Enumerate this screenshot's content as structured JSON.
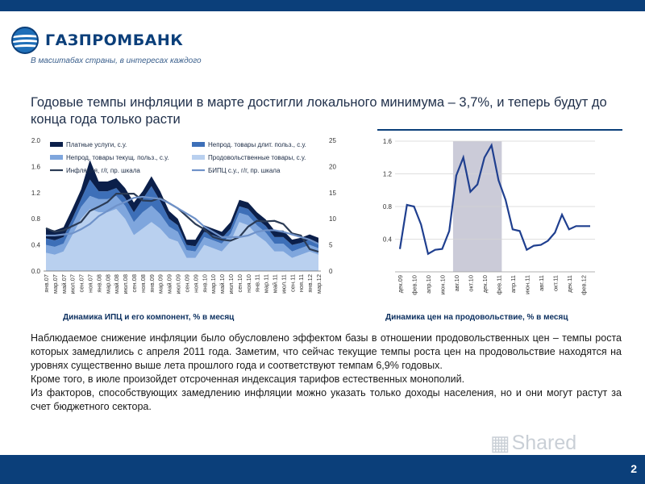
{
  "brand": {
    "name": "ГАЗПРОМБАНК",
    "tagline": "В масштабах страны, в интересах каждого"
  },
  "headline": "Годовые темпы инфляции в марте достигли локального минимума – 3,7%, и теперь будут до конца года только расти",
  "colors": {
    "brand_dark": "#0b3f7a",
    "services": "#0b1f4a",
    "durables": "#3d6fb8",
    "nondurables": "#7fa6dd",
    "food": "#b9d0ef",
    "cpi": "#2b3b55",
    "core": "#6f92c9",
    "highlight": "#cbcbd8"
  },
  "chart_data": [
    {
      "type": "area",
      "title": "Динамика ИПЦ и его компонент, % в месяц",
      "categories": [
        "янв.07",
        "мар.07",
        "май.07",
        "июл.07",
        "сен.07",
        "ноя.07",
        "янв.08",
        "мар.08",
        "май.08",
        "июл.08",
        "сен.08",
        "ноя.08",
        "янв.09",
        "мар.09",
        "май.09",
        "июл.09",
        "сен.09",
        "ноя.09",
        "янв.10",
        "мар.10",
        "май.10",
        "июл.10",
        "сен.10",
        "ноя.10",
        "янв.11",
        "мар.11",
        "май.11",
        "июл.11",
        "сен.11",
        "ноя.11",
        "янв.12",
        "мар.12"
      ],
      "ylim": [
        0,
        2.0
      ],
      "y_ticks": [
        "0.0",
        "0.4",
        "0.8",
        "1.2",
        "1.6",
        "2.0"
      ],
      "y2lim": [
        0,
        25
      ],
      "y2_ticks": [
        "0",
        "5",
        "10",
        "15",
        "20",
        "25"
      ],
      "legend": [
        "Платные услуги, с.у.",
        "Непрод. товары длит. польз., с.у.",
        "Непрод. товары текущ. польз., с.у.",
        "Продовольственные товары, с.у.",
        "Инфляция, г/г, пр. шкала",
        "БИПЦ с.у., г/г, пр. шкала"
      ],
      "series": [
        {
          "name": "Продовольственные товары, с.у.",
          "values": [
            0.28,
            0.25,
            0.3,
            0.55,
            0.8,
            0.95,
            0.9,
            0.9,
            0.95,
            0.8,
            0.55,
            0.65,
            0.75,
            0.65,
            0.5,
            0.45,
            0.2,
            0.2,
            0.4,
            0.35,
            0.3,
            0.45,
            0.75,
            0.7,
            0.55,
            0.45,
            0.3,
            0.3,
            0.2,
            0.25,
            0.3,
            0.25
          ]
        },
        {
          "name": "Непрод. товары текущ. польз., с.у.",
          "values": [
            0.12,
            0.12,
            0.12,
            0.15,
            0.18,
            0.2,
            0.2,
            0.2,
            0.2,
            0.2,
            0.2,
            0.25,
            0.25,
            0.22,
            0.18,
            0.15,
            0.12,
            0.1,
            0.12,
            0.12,
            0.12,
            0.12,
            0.14,
            0.15,
            0.15,
            0.14,
            0.12,
            0.12,
            0.1,
            0.1,
            0.1,
            0.1
          ]
        },
        {
          "name": "Непрод. товары длит. польз., с.у.",
          "values": [
            0.1,
            0.1,
            0.1,
            0.1,
            0.12,
            0.25,
            0.12,
            0.12,
            0.12,
            0.12,
            0.15,
            0.2,
            0.3,
            0.2,
            0.12,
            0.1,
            0.08,
            0.08,
            0.08,
            0.08,
            0.08,
            0.08,
            0.1,
            0.1,
            0.1,
            0.1,
            0.1,
            0.1,
            0.1,
            0.08,
            0.08,
            0.08
          ]
        },
        {
          "name": "Платные услуги, с.у.",
          "values": [
            0.15,
            0.15,
            0.15,
            0.15,
            0.15,
            0.3,
            0.15,
            0.15,
            0.15,
            0.15,
            0.15,
            0.12,
            0.15,
            0.15,
            0.12,
            0.1,
            0.08,
            0.1,
            0.1,
            0.1,
            0.1,
            0.1,
            0.1,
            0.1,
            0.1,
            0.1,
            0.1,
            0.1,
            0.08,
            0.08,
            0.08,
            0.08
          ]
        },
        {
          "name": "Инфляция, г/г, пр. шкала",
          "axis": "right",
          "values": [
            8.2,
            7.5,
            7.8,
            8.6,
            9.4,
            11.5,
            12.3,
            13.2,
            14.8,
            14.8,
            14.8,
            13.5,
            13.4,
            14.0,
            13.0,
            12.0,
            10.5,
            9.0,
            8.0,
            6.5,
            6.0,
            5.8,
            6.5,
            8.5,
            9.6,
            9.5,
            9.6,
            9.0,
            7.2,
            6.8,
            4.2,
            3.7
          ]
        },
        {
          "name": "БИПЦ с.у., г/г, пр. шкала",
          "axis": "right",
          "values": [
            6.8,
            6.8,
            7.0,
            7.2,
            8.0,
            9.0,
            10.5,
            11.5,
            12.5,
            13.2,
            14.0,
            14.2,
            14.0,
            13.8,
            13.0,
            12.0,
            11.0,
            10.0,
            8.5,
            7.5,
            6.5,
            6.5,
            6.5,
            6.8,
            7.5,
            7.8,
            7.8,
            7.5,
            7.0,
            6.5,
            6.0,
            5.2
          ]
        }
      ]
    },
    {
      "type": "line",
      "title": "Динамика цен на продовольствие, % в месяц",
      "x_tick_labels": [
        "дек.09",
        "фев.10",
        "апр.10",
        "июн.10",
        "авг.10",
        "окт.10",
        "дек.10",
        "фев.11",
        "апр.11",
        "июн.11",
        "авг.11",
        "окт.11",
        "дек.11",
        "фев.12"
      ],
      "ylim": [
        0,
        1.6
      ],
      "y_ticks": [
        "0.4",
        "0.8",
        "1.2",
        "1.6"
      ],
      "shaded_range": [
        "авг.10",
        "фев.11"
      ],
      "series": [
        {
          "name": "",
          "values": [
            0.28,
            0.82,
            0.8,
            0.58,
            0.22,
            0.27,
            0.28,
            0.5,
            1.18,
            1.4,
            0.98,
            1.07,
            1.4,
            1.55,
            1.12,
            0.88,
            0.52,
            0.5,
            0.27,
            0.32,
            0.33,
            0.38,
            0.48,
            0.7,
            0.52,
            0.56,
            0.56,
            0.56
          ]
        }
      ]
    }
  ],
  "body": {
    "p1": "Наблюдаемое снижение инфляции было обусловлено эффектом базы в отношении продовольственных цен – темпы роста которых замедлились с апреля 2011 года. Заметим, что сейчас текущие темпы роста цен на продовольствие находятся на уровнях существенно выше лета прошлого года и соответствуют темпам 6,9% годовых.",
    "p2": "Кроме того, в июле произойдет отсроченная индексация тарифов естественных монополий.",
    "p3": "Из факторов, способствующих замедлению инфляции можно указать только доходы населения, но и они могут растут за счет бюджетного сектора."
  },
  "watermark": "Shared",
  "page_number": "2"
}
